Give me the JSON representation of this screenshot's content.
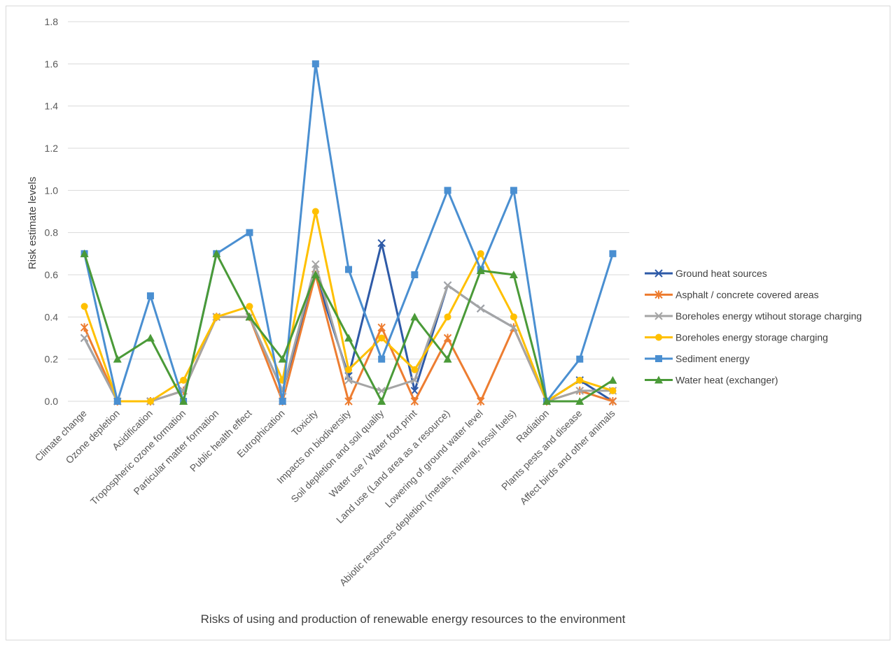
{
  "chart_data": {
    "type": "line",
    "title": "",
    "xlabel": "Risks of using and production of renewable energy resources to the environment",
    "ylabel": "Risk estimate levels",
    "ylim": [
      0,
      1.8
    ],
    "yticks": [
      0.0,
      0.2,
      0.4,
      0.6,
      0.8,
      1.0,
      1.2,
      1.4,
      1.6,
      1.8
    ],
    "ytick_labels": [
      "0.0",
      "0.2",
      "0.4",
      "0.6",
      "0.8",
      "1.0",
      "1.2",
      "1.4",
      "1.6",
      "1.8"
    ],
    "grid": "horizontal",
    "legend_position": "right",
    "categories": [
      "Climate change",
      "Ozone depletion",
      "Acidification",
      "Tropospheric ozone formation",
      "Particular matter formation",
      "Public health effect",
      "Eutrophication",
      "Toxicity",
      "Impacts on biodiversity",
      "Soil depletion and soil quality",
      "Water use / Water foot print",
      "Land use (Land area as a resource)",
      "Lowering of ground water level",
      "Abiotic resources depletion (metals, mineral, fossil fuels)",
      "Radiation",
      "Plants pests and disease",
      "Affect birds and other animals"
    ],
    "series": [
      {
        "name": "Ground heat sources",
        "color": "#2e5aa7",
        "marker": "x",
        "values": [
          0.3,
          0.0,
          0.0,
          0.05,
          0.4,
          0.4,
          0.05,
          0.6,
          0.12,
          0.75,
          0.05,
          0.55,
          0.44,
          0.35,
          0.0,
          0.1,
          0.0
        ]
      },
      {
        "name": "Asphalt / concrete covered areas",
        "color": "#ed7d31",
        "marker": "star",
        "values": [
          0.35,
          0.0,
          0.0,
          0.05,
          0.4,
          0.4,
          0.0,
          0.6,
          0.0,
          0.35,
          0.0,
          0.3,
          0.0,
          0.35,
          0.0,
          0.05,
          0.0
        ]
      },
      {
        "name": "Boreholes energy wtihout storage  charging",
        "color": "#a5a5a5",
        "marker": "x",
        "values": [
          0.3,
          0.0,
          0.0,
          0.05,
          0.4,
          0.4,
          0.05,
          0.65,
          0.1,
          0.05,
          0.1,
          0.55,
          0.44,
          0.35,
          0.0,
          0.05,
          0.05
        ]
      },
      {
        "name": "Boreholes energy storage charging",
        "color": "#ffc000",
        "marker": "circle",
        "values": [
          0.45,
          0.0,
          0.0,
          0.1,
          0.4,
          0.45,
          0.1,
          0.9,
          0.15,
          0.3,
          0.15,
          0.4,
          0.7,
          0.4,
          0.0,
          0.1,
          0.05
        ]
      },
      {
        "name": "Sediment energy",
        "color": "#4a8fd1",
        "marker": "square",
        "values": [
          0.7,
          0.0,
          0.5,
          0.0,
          0.7,
          0.8,
          0.0,
          1.6,
          0.625,
          0.2,
          0.6,
          1.0,
          0.625,
          1.0,
          0.0,
          0.2,
          0.7
        ]
      },
      {
        "name": "Water heat (exchanger)",
        "color": "#4a9a38",
        "marker": "triangle",
        "values": [
          0.7,
          0.2,
          0.3,
          0.0,
          0.7,
          0.4,
          0.2,
          0.6,
          0.3,
          0.0,
          0.4,
          0.2,
          0.62,
          0.6,
          0.0,
          0.0,
          0.1
        ]
      }
    ]
  }
}
